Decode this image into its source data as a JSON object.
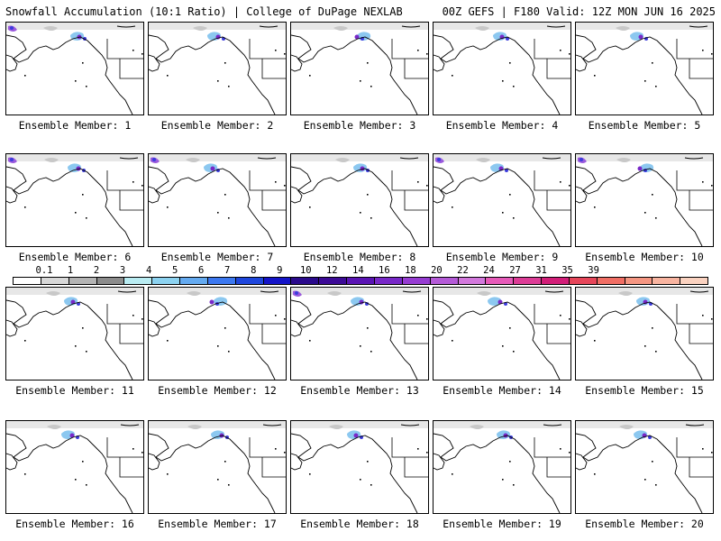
{
  "header": {
    "left_title": "Snowfall Accumulation (10:1 Ratio) | College of DuPage NEXLAB",
    "right_title": "00Z GEFS | F180 Valid: 12Z MON JUN 16 2025"
  },
  "panels": [
    {
      "label": "Ensemble Member: 1"
    },
    {
      "label": "Ensemble Member: 2"
    },
    {
      "label": "Ensemble Member: 3"
    },
    {
      "label": "Ensemble Member: 4"
    },
    {
      "label": "Ensemble Member: 5"
    },
    {
      "label": "Ensemble Member: 6"
    },
    {
      "label": "Ensemble Member: 7"
    },
    {
      "label": "Ensemble Member: 8"
    },
    {
      "label": "Ensemble Member: 9"
    },
    {
      "label": "Ensemble Member: 10"
    },
    {
      "label": "Ensemble Member: 11"
    },
    {
      "label": "Ensemble Member: 12"
    },
    {
      "label": "Ensemble Member: 13"
    },
    {
      "label": "Ensemble Member: 14"
    },
    {
      "label": "Ensemble Member: 15"
    },
    {
      "label": "Ensemble Member: 16"
    },
    {
      "label": "Ensemble Member: 17"
    },
    {
      "label": "Ensemble Member: 18"
    },
    {
      "label": "Ensemble Member: 19"
    },
    {
      "label": "Ensemble Member: 20"
    }
  ],
  "colorbar": {
    "labels": [
      "0.1",
      "1",
      "2",
      "3",
      "4",
      "5",
      "6",
      "7",
      "8",
      "9",
      "10",
      "12",
      "14",
      "16",
      "18",
      "20",
      "22",
      "24",
      "27",
      "31",
      "35",
      "39"
    ],
    "colors": [
      "#ffffff",
      "#d8d8d8",
      "#b4b4b4",
      "#8c8c8c",
      "#b9ecf2",
      "#8cd2f0",
      "#64aaf0",
      "#3c78f0",
      "#1e46dc",
      "#1414c8",
      "#2a0a8c",
      "#3c0a96",
      "#5a14b4",
      "#7828c8",
      "#963cd2",
      "#b45ad7",
      "#d278dc",
      "#e65ab9",
      "#dc3c96",
      "#d21e78",
      "#e6465a",
      "#f06e64",
      "#f59682",
      "#f8b4a0",
      "#fad2c0"
    ]
  }
}
